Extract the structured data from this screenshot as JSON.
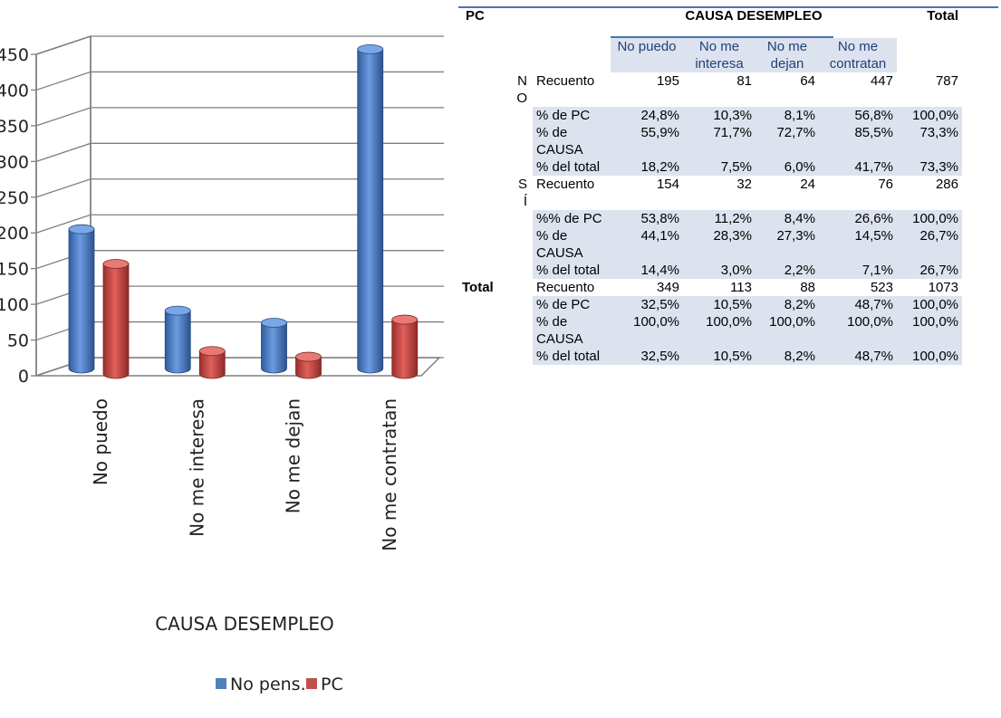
{
  "chart_data": {
    "type": "bar",
    "categories": [
      "No puedo",
      "No me interesa",
      "No me dejan",
      "No me contratan"
    ],
    "series": [
      {
        "name": "No pens.",
        "values": [
          195,
          81,
          64,
          447
        ],
        "color": "#4f81bd"
      },
      {
        "name": "PC",
        "values": [
          154,
          32,
          24,
          76
        ],
        "color": "#c0504d"
      }
    ],
    "xlabel": "CAUSA DESEMPLEO",
    "ylabel": "",
    "ylim": [
      0,
      450
    ],
    "yticks": [
      0,
      50,
      100,
      150,
      200,
      250,
      300,
      350,
      400,
      450
    ],
    "grid": true,
    "legend_position": "bottom",
    "style": "3d-cylinder"
  },
  "table": {
    "row_var": "PC",
    "col_var": "CAUSA DESEMPLEO",
    "total_label": "Total",
    "columns": [
      "No puedo",
      "No me interesa",
      "No me dejan",
      "No me contratan"
    ],
    "groups": [
      {
        "label": "NO",
        "rows": [
          {
            "stat": "Recuento",
            "values": [
              "195",
              "81",
              "64",
              "447"
            ],
            "total": "787"
          },
          {
            "stat": "% de PC",
            "values": [
              "24,8%",
              "10,3%",
              "8,1%",
              "56,8%"
            ],
            "total": "100,0%"
          },
          {
            "stat": "% de CAUSA",
            "values": [
              "55,9%",
              "71,7%",
              "72,7%",
              "85,5%"
            ],
            "total": "73,3%"
          },
          {
            "stat": "% del total",
            "values": [
              "18,2%",
              "7,5%",
              "6,0%",
              "41,7%"
            ],
            "total": "73,3%"
          }
        ]
      },
      {
        "label": "SÍ",
        "rows": [
          {
            "stat": "Recuento",
            "values": [
              "154",
              "32",
              "24",
              "76"
            ],
            "total": "286"
          },
          {
            "stat": "%% de PC",
            "values": [
              "53,8%",
              "11,2%",
              "8,4%",
              "26,6%"
            ],
            "total": "100,0%"
          },
          {
            "stat": "% de CAUSA",
            "values": [
              "44,1%",
              "28,3%",
              "27,3%",
              "14,5%"
            ],
            "total": "26,7%"
          },
          {
            "stat": "% del total",
            "values": [
              "14,4%",
              "3,0%",
              "2,2%",
              "7,1%"
            ],
            "total": "26,7%"
          }
        ]
      },
      {
        "label": "Total",
        "rows": [
          {
            "stat": "Recuento",
            "values": [
              "349",
              "113",
              "88",
              "523"
            ],
            "total": "1073"
          },
          {
            "stat": "% de PC",
            "values": [
              "32,5%",
              "10,5%",
              "8,2%",
              "48,7%"
            ],
            "total": "100,0%"
          },
          {
            "stat": "% de CAUSA",
            "values": [
              "100,0%",
              "100,0%",
              "100,0%",
              "100,0%"
            ],
            "total": "100,0%"
          },
          {
            "stat": "% del total",
            "values": [
              "32,5%",
              "10,5%",
              "8,2%",
              "48,7%"
            ],
            "total": "100,0%"
          }
        ]
      }
    ]
  }
}
